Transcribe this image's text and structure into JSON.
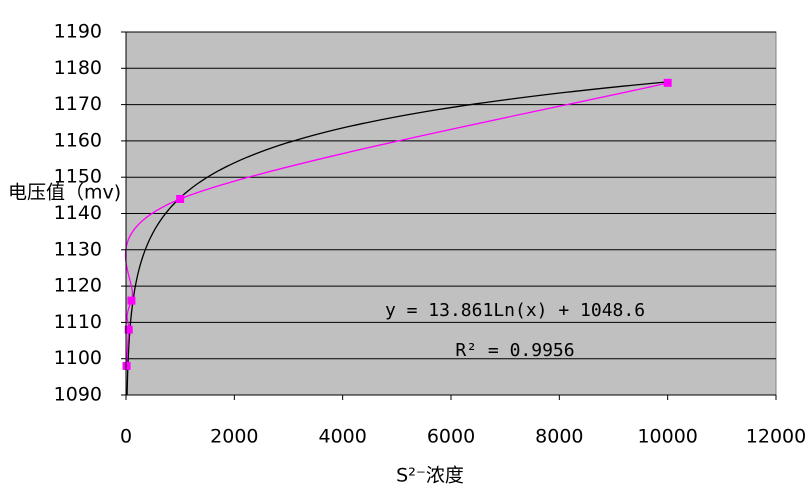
{
  "chart_data": {
    "type": "scatter",
    "x_label": "S²⁻浓度",
    "y_label": "电压值（mv)",
    "series": [
      {
        "color": "#ff00ff",
        "x": [
          10,
          50,
          100,
          1000,
          10000
        ],
        "values": [
          1098,
          1108,
          1116,
          1144,
          1176
        ]
      }
    ],
    "trendline": {
      "type": "log",
      "slope": 13.861,
      "intercept": 1048.6,
      "color": "#000000",
      "equation": "y = 13.861Ln(x) + 1048.6",
      "r_squared": "R² = 0.9956"
    },
    "xlim": [
      0,
      12000
    ],
    "xticks": [
      0,
      2000,
      4000,
      6000,
      8000,
      10000,
      12000
    ],
    "ylim": [
      1090,
      1190
    ],
    "yticks": [
      1090,
      1100,
      1110,
      1120,
      1130,
      1140,
      1150,
      1160,
      1170,
      1180,
      1190
    ],
    "grid": true,
    "plot_background": "#c0c0c0"
  }
}
